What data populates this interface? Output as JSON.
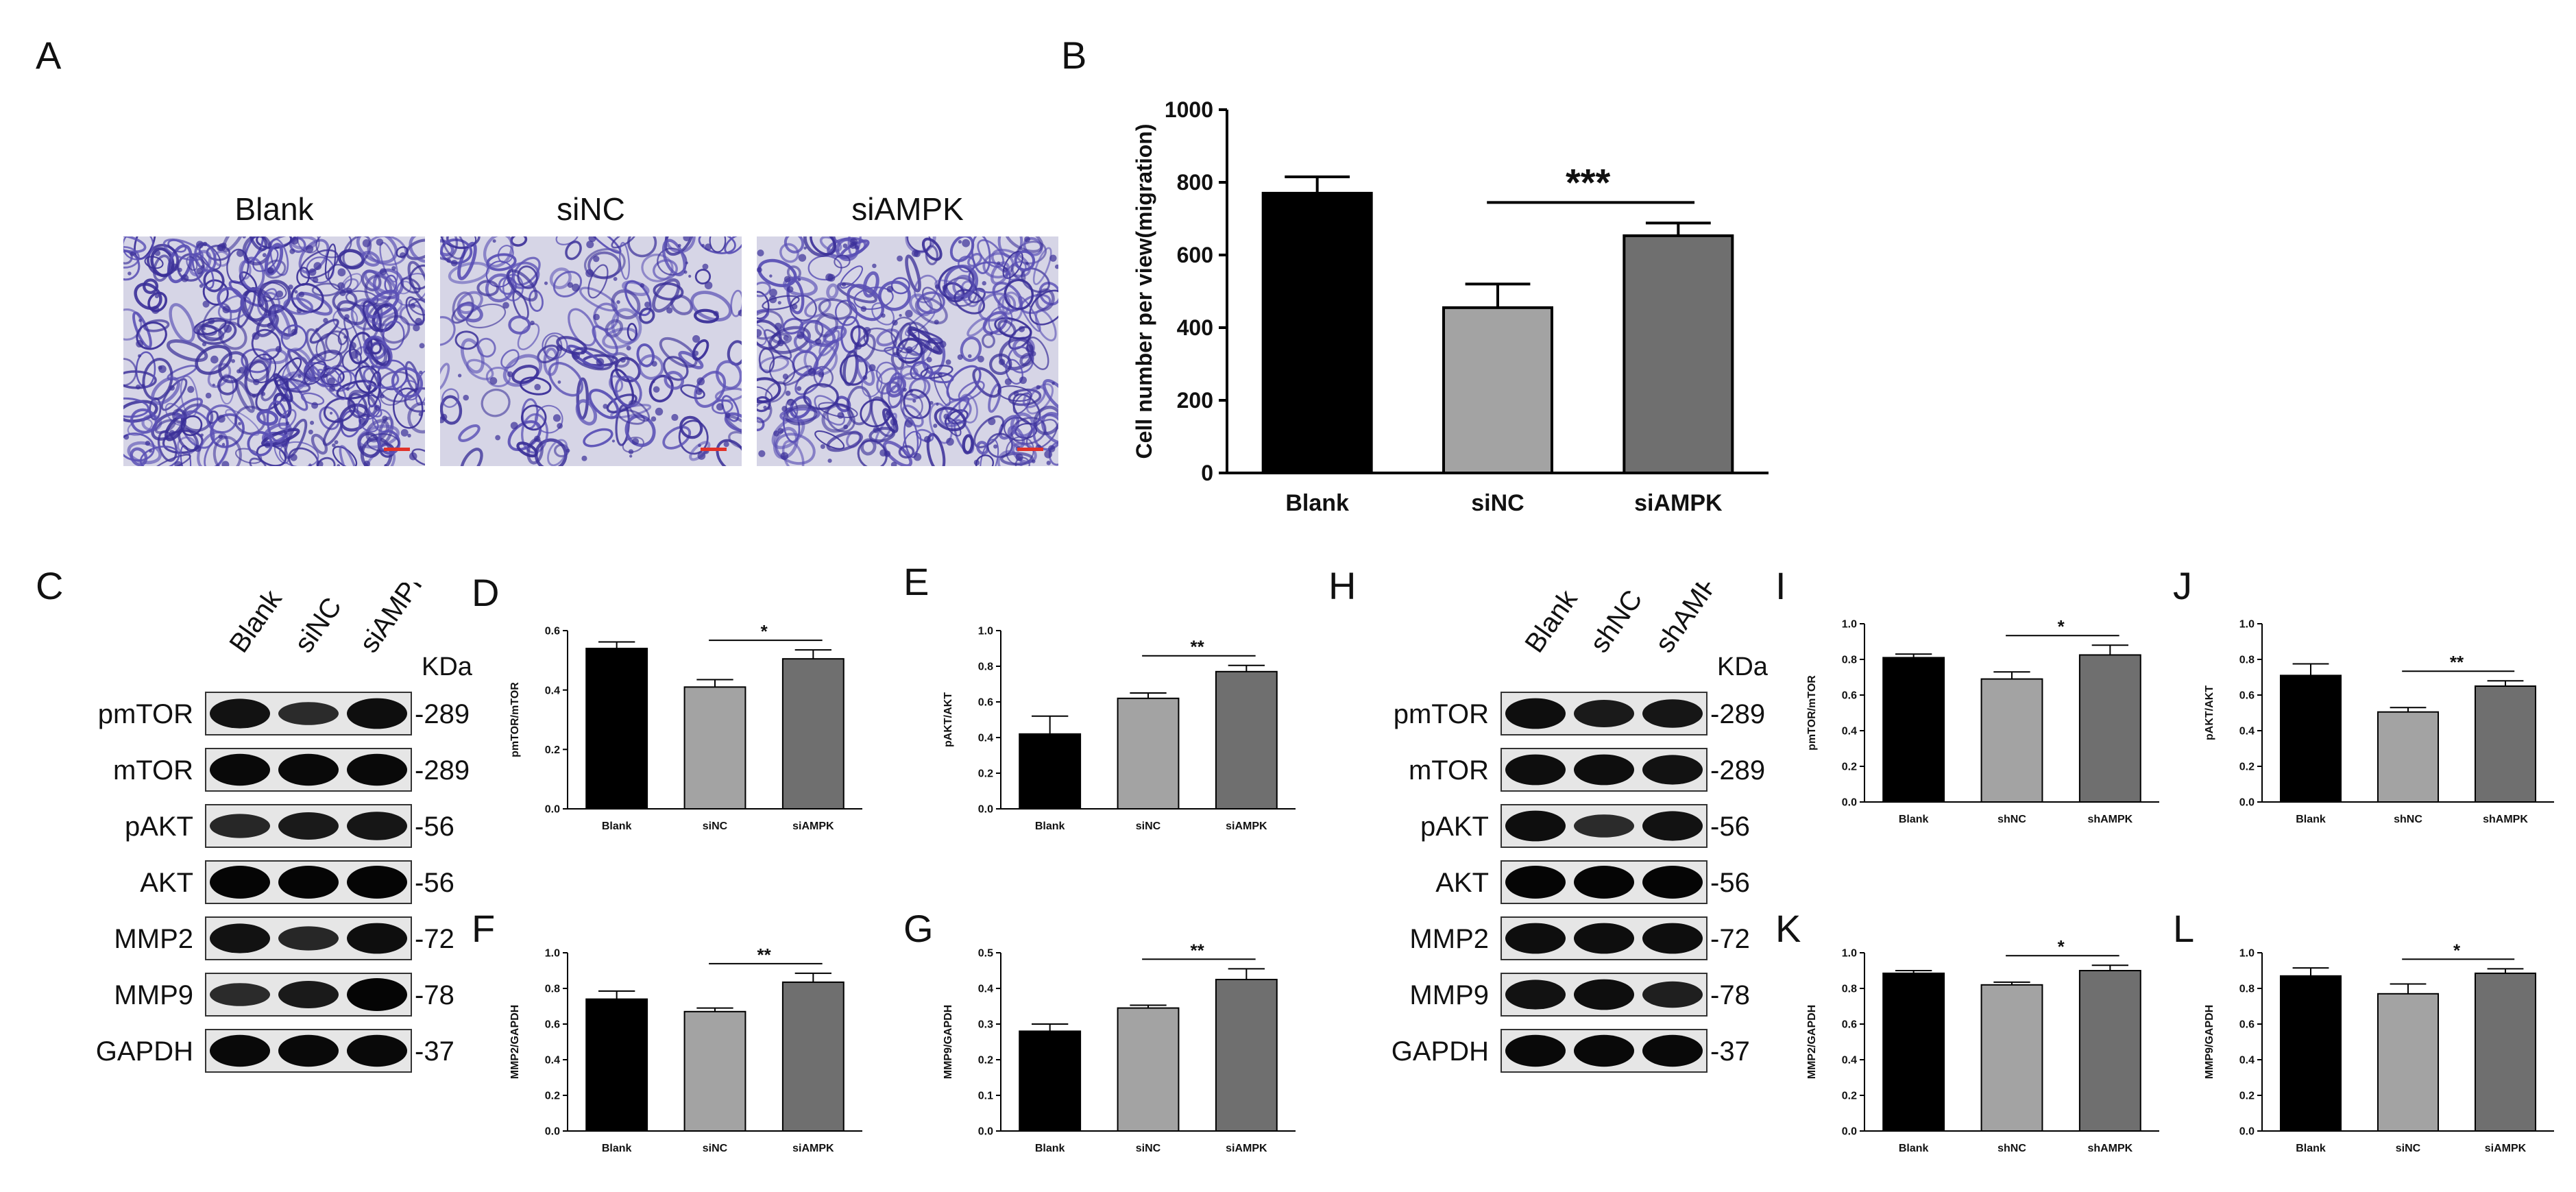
{
  "panel_letters": [
    "A",
    "B",
    "C",
    "D",
    "E",
    "F",
    "G",
    "H",
    "I",
    "J",
    "K",
    "L"
  ],
  "micrographs": {
    "titles": [
      "Blank",
      "siNC",
      "siAMPK"
    ],
    "colors": {
      "background": "#d6d5e6",
      "stain": "#5a50b5",
      "dark": "#3a2f98"
    }
  },
  "blot_C": {
    "lanes": [
      "Blank",
      "siNC",
      "siAMPK"
    ],
    "kda_title": "KDa",
    "proteins": [
      "pmTOR",
      "mTOR",
      "pAKT",
      "AKT",
      "MMP2",
      "MMP9",
      "GAPDH"
    ],
    "kda": [
      "-289",
      "-289",
      "-56",
      "-56",
      "-72",
      "-78",
      "-37"
    ],
    "intensity": [
      [
        0.85,
        0.55,
        0.9
      ],
      [
        0.95,
        0.95,
        0.95
      ],
      [
        0.6,
        0.75,
        0.8
      ],
      [
        1,
        1,
        1
      ],
      [
        0.85,
        0.6,
        0.9
      ],
      [
        0.55,
        0.75,
        1
      ],
      [
        0.95,
        0.95,
        0.95
      ]
    ]
  },
  "blot_H": {
    "lanes": [
      "Blank",
      "shNC",
      "shAMPK"
    ],
    "kda_title": "KDa",
    "proteins": [
      "pmTOR",
      "mTOR",
      "pAKT",
      "AKT",
      "MMP2",
      "MMP9",
      "GAPDH"
    ],
    "kda": [
      "-289",
      "-289",
      "-56",
      "-56",
      "-72",
      "-78",
      "-37"
    ],
    "intensity": [
      [
        0.9,
        0.75,
        0.8
      ],
      [
        0.9,
        0.9,
        0.85
      ],
      [
        0.9,
        0.55,
        0.85
      ],
      [
        1,
        1,
        1
      ],
      [
        0.9,
        0.9,
        0.9
      ],
      [
        0.85,
        0.9,
        0.7
      ],
      [
        0.95,
        0.95,
        0.95
      ]
    ]
  },
  "colors": {
    "bar_dark": "#000000",
    "bar_light": "#a3a3a3",
    "bar_mid": "#6f6f6f"
  },
  "chart_data": [
    {
      "panel": "B",
      "type": "bar",
      "categories": [
        "Blank",
        "siNC",
        "siAMPK"
      ],
      "values": [
        770,
        455,
        653
      ],
      "errors": [
        45,
        65,
        35
      ],
      "ylabel": "Cell number per view(migration)",
      "xlabel": "",
      "ylim": [
        0,
        1000
      ],
      "yticks": [
        0,
        200,
        400,
        600,
        800,
        1000
      ],
      "significance": "***"
    },
    {
      "panel": "D",
      "type": "bar",
      "categories": [
        "Blank",
        "siNC",
        "siAMPK"
      ],
      "values": [
        0.54,
        0.41,
        0.505
      ],
      "errors": [
        0.022,
        0.025,
        0.03
      ],
      "ylabel": "pmTOR/mTOR",
      "xlabel": "",
      "ylim": [
        0,
        0.6
      ],
      "yticks": [
        0.0,
        0.2,
        0.4,
        0.6
      ],
      "significance": "*"
    },
    {
      "panel": "E",
      "type": "bar",
      "categories": [
        "Blank",
        "siNC",
        "siAMPK"
      ],
      "values": [
        0.42,
        0.62,
        0.77
      ],
      "errors": [
        0.1,
        0.03,
        0.035
      ],
      "ylabel": "pAKT/AKT",
      "xlabel": "",
      "ylim": [
        0,
        1.0
      ],
      "yticks": [
        0.0,
        0.2,
        0.4,
        0.6,
        0.8,
        1.0
      ],
      "significance": "**"
    },
    {
      "panel": "F",
      "type": "bar",
      "categories": [
        "Blank",
        "siNC",
        "siAMPK"
      ],
      "values": [
        0.74,
        0.67,
        0.835
      ],
      "errors": [
        0.045,
        0.02,
        0.05
      ],
      "ylabel": "MMP2/GAPDH",
      "xlabel": "",
      "ylim": [
        0,
        1.0
      ],
      "yticks": [
        0.0,
        0.2,
        0.4,
        0.6,
        0.8,
        1.0
      ],
      "significance": "**"
    },
    {
      "panel": "G",
      "type": "bar",
      "categories": [
        "Blank",
        "siNC",
        "siAMPK"
      ],
      "values": [
        0.28,
        0.345,
        0.425
      ],
      "errors": [
        0.02,
        0.008,
        0.03
      ],
      "ylabel": "MMP9/GAPDH",
      "xlabel": "",
      "ylim": [
        0,
        0.5
      ],
      "yticks": [
        0.0,
        0.1,
        0.2,
        0.3,
        0.4,
        0.5
      ],
      "significance": "**"
    },
    {
      "panel": "I",
      "type": "bar",
      "categories": [
        "Blank",
        "shNC",
        "shAMPK"
      ],
      "values": [
        0.81,
        0.69,
        0.825
      ],
      "errors": [
        0.02,
        0.04,
        0.055
      ],
      "ylabel": "pmTOR/mTOR",
      "xlabel": "",
      "ylim": [
        0,
        1.0
      ],
      "yticks": [
        0.0,
        0.2,
        0.4,
        0.6,
        0.8,
        1.0
      ],
      "significance": "*"
    },
    {
      "panel": "J",
      "type": "bar",
      "categories": [
        "Blank",
        "shNC",
        "shAMPK"
      ],
      "values": [
        0.71,
        0.505,
        0.65
      ],
      "errors": [
        0.065,
        0.025,
        0.03
      ],
      "ylabel": "pAKT/AKT",
      "xlabel": "",
      "ylim": [
        0,
        1.0
      ],
      "yticks": [
        0.0,
        0.2,
        0.4,
        0.6,
        0.8,
        1.0
      ],
      "significance": "**"
    },
    {
      "panel": "K",
      "type": "bar",
      "categories": [
        "Blank",
        "shNC",
        "shAMPK"
      ],
      "values": [
        0.885,
        0.82,
        0.9
      ],
      "errors": [
        0.015,
        0.015,
        0.03
      ],
      "ylabel": "MMP2/GAPDH",
      "xlabel": "",
      "ylim": [
        0,
        1.0
      ],
      "yticks": [
        0.0,
        0.2,
        0.4,
        0.6,
        0.8,
        1.0
      ],
      "significance": "*"
    },
    {
      "panel": "L",
      "type": "bar",
      "categories": [
        "Blank",
        "siNC",
        "siAMPK"
      ],
      "values": [
        0.87,
        0.77,
        0.885
      ],
      "errors": [
        0.045,
        0.055,
        0.025
      ],
      "ylabel": "MMP9/GAPDH",
      "xlabel": "",
      "ylim": [
        0,
        1.0
      ],
      "yticks": [
        0.0,
        0.2,
        0.4,
        0.6,
        0.8,
        1.0
      ],
      "significance": "*"
    }
  ]
}
